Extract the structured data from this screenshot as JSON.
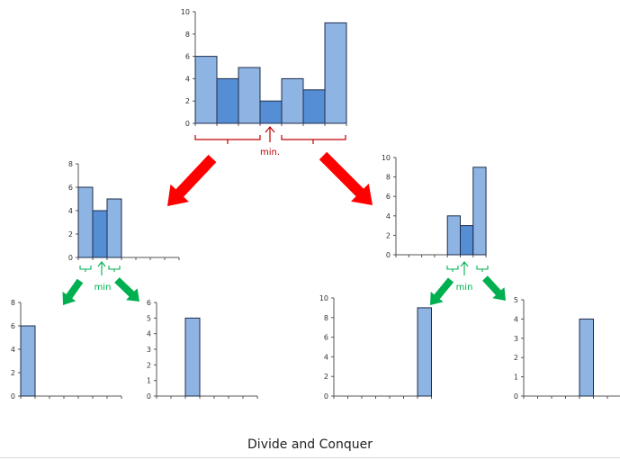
{
  "caption": "Divide and Conquer",
  "colors": {
    "light_bar": "#8EB4E3",
    "dark_bar": "#558ED5",
    "bar_edge": "#1F2D4A",
    "axis": "#555555",
    "red_arrow": "#FF0000",
    "red_text": "#C00000",
    "green_arrow": "#00B050",
    "green_text": "#00B050"
  },
  "icons": [
    "red-arrow-icon",
    "green-arrow-icon",
    "brace-icon",
    "up-arrow-icon"
  ],
  "markers": {
    "top": "min.",
    "left": "min",
    "right": "min"
  },
  "chart_data": [
    {
      "id": "root",
      "type": "bar",
      "ylim": [
        0,
        10
      ],
      "yticks": [
        0,
        2,
        4,
        6,
        8,
        10
      ],
      "categories": 7,
      "values": [
        6,
        4,
        5,
        2,
        4,
        3,
        9
      ],
      "shades": [
        "light",
        "dark",
        "light",
        "dark",
        "light",
        "dark",
        "light"
      ]
    },
    {
      "id": "left",
      "type": "bar",
      "ylim": [
        0,
        8
      ],
      "yticks": [
        0,
        2,
        4,
        6,
        8
      ],
      "categories": 7,
      "values": [
        6,
        4,
        5,
        null,
        null,
        null,
        null
      ],
      "shades": [
        "light",
        "dark",
        "light",
        "light",
        "light",
        "light",
        "light"
      ]
    },
    {
      "id": "right",
      "type": "bar",
      "ylim": [
        0,
        10
      ],
      "yticks": [
        0,
        2,
        4,
        6,
        8,
        10
      ],
      "categories": 7,
      "values": [
        null,
        null,
        null,
        null,
        4,
        3,
        9
      ],
      "shades": [
        "light",
        "light",
        "light",
        "light",
        "light",
        "dark",
        "light"
      ]
    },
    {
      "id": "left-left",
      "type": "bar",
      "ylim": [
        0,
        8
      ],
      "yticks": [
        0,
        2,
        4,
        6,
        8
      ],
      "categories": 7,
      "values": [
        6,
        null,
        null,
        null,
        null,
        null,
        null
      ],
      "shades": [
        "light",
        "light",
        "light",
        "light",
        "light",
        "light",
        "light"
      ]
    },
    {
      "id": "left-right",
      "type": "bar",
      "ylim": [
        0,
        6
      ],
      "yticks": [
        0,
        1,
        2,
        3,
        4,
        5,
        6
      ],
      "categories": 7,
      "values": [
        null,
        null,
        5,
        null,
        null,
        null,
        null
      ],
      "shades": [
        "light",
        "light",
        "light",
        "light",
        "light",
        "light",
        "light"
      ]
    },
    {
      "id": "right-left",
      "type": "bar",
      "ylim": [
        0,
        10
      ],
      "yticks": [
        0,
        2,
        4,
        6,
        8,
        10
      ],
      "categories": 7,
      "values": [
        null,
        null,
        null,
        null,
        null,
        null,
        9
      ],
      "shades": [
        "light",
        "light",
        "light",
        "light",
        "light",
        "light",
        "light"
      ]
    },
    {
      "id": "right-right",
      "type": "bar",
      "ylim": [
        0,
        5
      ],
      "yticks": [
        0,
        1,
        2,
        3,
        4,
        5
      ],
      "categories": 7,
      "values": [
        null,
        null,
        null,
        null,
        4,
        null,
        null
      ],
      "shades": [
        "light",
        "light",
        "light",
        "light",
        "light",
        "light",
        "light"
      ]
    }
  ]
}
